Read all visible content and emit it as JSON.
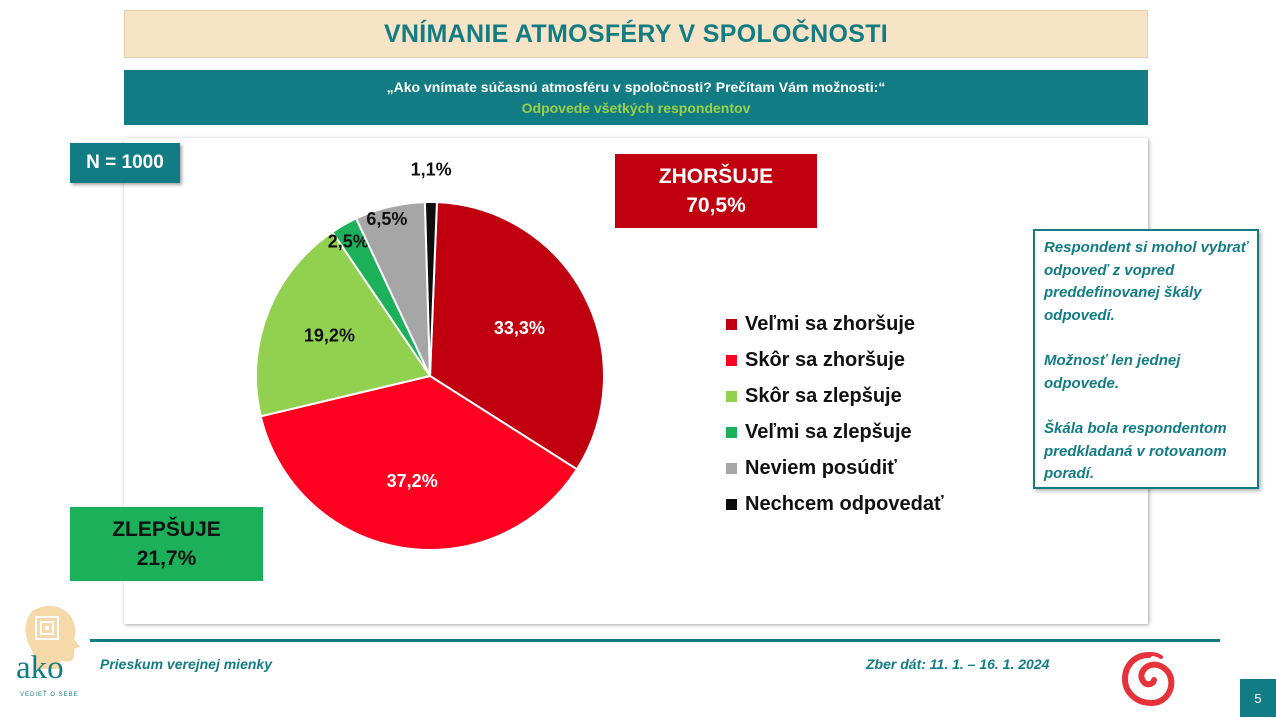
{
  "slide": {
    "title": "VNÍMANIE ATMOSFÉRY V SPOLOČNOSTI",
    "question": "„Ako vnímate súčasnú atmosféru v spoločnosti? Prečítam Vám možnosti:“",
    "subtitle": "Odpovede všetkých respondentov",
    "n_label": "N = 1000",
    "page_number": "5"
  },
  "summary": {
    "worse_label": "ZHORŠUJE",
    "worse_value": "70,5%",
    "better_label": "ZLEPŠUJE",
    "better_value": "21,7%"
  },
  "note": {
    "paragraphs": [
      "Respondent si mohol vybrať odpoveď z vopred preddefinovanej škály odpovedí.",
      "Možnosť len jednej odpovede.",
      "Škála bola respondentom predkladaná v rotovanom poradí."
    ]
  },
  "footer": {
    "left": "Prieskum verejnej mienky",
    "right": "Zber dát: 11. 1. – 16. 1. 2024",
    "logo_text": "ako",
    "logo_tagline": "VEDIEŤ O SEBE"
  },
  "chart_data": {
    "type": "pie",
    "title": "",
    "legend_position": "right",
    "slices": [
      {
        "label": "Veľmi sa zhoršuje",
        "value": 33.3,
        "display": "33,3%",
        "color": "#c0000f",
        "label_color": "#ffffff"
      },
      {
        "label": "Skôr sa zhoršuje",
        "value": 37.2,
        "display": "37,2%",
        "color": "#ff0021",
        "label_color": "#ffffff"
      },
      {
        "label": "Skôr sa zlepšuje",
        "value": 19.2,
        "display": "19,2%",
        "color": "#92d050",
        "label_color": "#111111"
      },
      {
        "label": "Veľmi sa zlepšuje",
        "value": 2.5,
        "display": "2,5%",
        "color": "#1bb059",
        "label_color": "#111111"
      },
      {
        "label": "Neviem posúdiť",
        "value": 6.5,
        "display": "6,5%",
        "color": "#a6a6a6",
        "label_color": "#111111"
      },
      {
        "label": "Nechcem odpovedať",
        "value": 1.1,
        "display": "1,1%",
        "color": "#0d0d0d",
        "label_color": "#111111"
      }
    ]
  },
  "colors": {
    "teal": "#127c85",
    "title_band": "#f7e3c6",
    "subtitle_green": "#9bd048"
  }
}
